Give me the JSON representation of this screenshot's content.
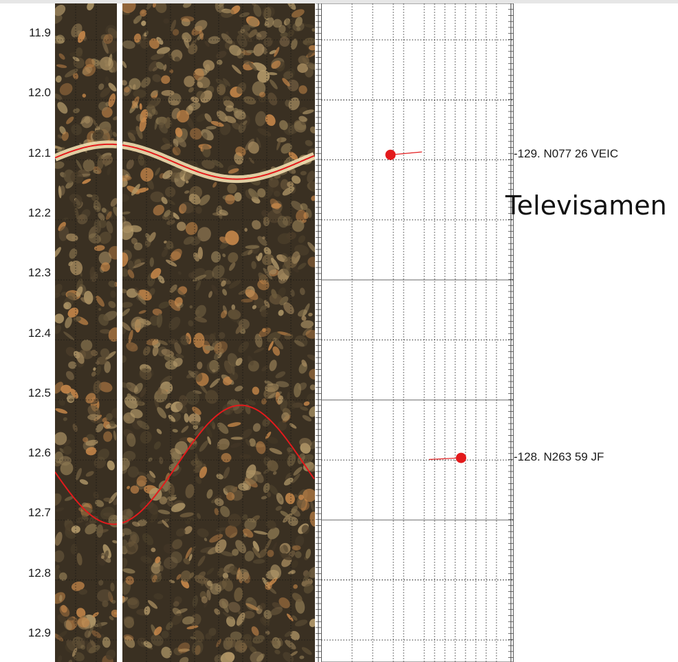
{
  "depth_scale": {
    "labels": [
      "11.9",
      "12.0",
      "12.1",
      "12.2",
      "12.3",
      "12.4",
      "12.5",
      "12.6",
      "12.7",
      "12.8",
      "12.9"
    ],
    "start": 11.9,
    "end": 12.9,
    "step": 0.1
  },
  "overlay": {
    "title": "Televisamen"
  },
  "structures": [
    {
      "id": "129",
      "label": "-129. N077 26 VEIC",
      "depth": 12.103,
      "dip_azimuth": 77,
      "dip": 26,
      "type": "VEIC",
      "trace_color": "#e31a1c",
      "marker_color": "#e31a1c"
    },
    {
      "id": "128",
      "label": "-128. N263 59 JF",
      "depth": 12.608,
      "dip_azimuth": 263,
      "dip": 59,
      "type": "JF",
      "trace_color": "#e31a1c",
      "marker_color": "#e31a1c"
    }
  ],
  "colors": {
    "rock_dark": "#3a3022",
    "rock_mid": "#5e4f36",
    "rock_light": "#a58a5e",
    "clast_orange": "#c8884a",
    "vein_cream": "#f2dfb0",
    "trace_red": "#e31a1c",
    "grid_line": "#444444"
  }
}
